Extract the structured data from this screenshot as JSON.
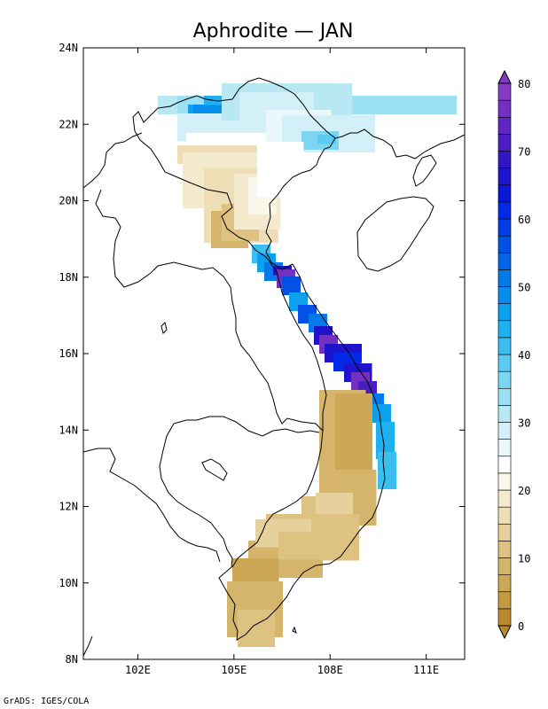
{
  "title": "Aphrodite  —  JAN",
  "credit": "GrADS: IGES/COLA",
  "map": {
    "lon_range": [
      100.3,
      112.2
    ],
    "lat_range": [
      8,
      24
    ],
    "lon_ticks": [
      {
        "value": 102,
        "label": "102E"
      },
      {
        "value": 105,
        "label": "105E"
      },
      {
        "value": 108,
        "label": "108E"
      },
      {
        "value": 111,
        "label": "111E"
      }
    ],
    "lat_ticks": [
      {
        "value": 8,
        "label": "8N"
      },
      {
        "value": 10,
        "label": "10N"
      },
      {
        "value": 12,
        "label": "12N"
      },
      {
        "value": 14,
        "label": "14N"
      },
      {
        "value": 16,
        "label": "16N"
      },
      {
        "value": 18,
        "label": "18N"
      },
      {
        "value": 20,
        "label": "20N"
      },
      {
        "value": 22,
        "label": "22N"
      },
      {
        "value": 24,
        "label": "24N"
      }
    ]
  },
  "colorbar": {
    "range": [
      0,
      80
    ],
    "labels": [
      "0",
      "10",
      "20",
      "30",
      "40",
      "50",
      "60",
      "70",
      "80"
    ],
    "colors": [
      "#b9892d",
      "#c49a42",
      "#cca756",
      "#d5b46b",
      "#ddc282",
      "#e6d09b",
      "#eddeb5",
      "#f4ebcf",
      "#faf6ea",
      "#ffffff",
      "#eaf7fb",
      "#d3f0f8",
      "#b9e8f5",
      "#9be0f3",
      "#7cd6f2",
      "#5ccbf1",
      "#3bbff0",
      "#1fb1ef",
      "#0da0ed",
      "#078deb",
      "#0479ea",
      "#0265e8",
      "#0151e7",
      "#003ee6",
      "#002ae5",
      "#0a18d8",
      "#1f14cc",
      "#3417c3",
      "#4a1ec0",
      "#5f27c0",
      "#7431c1",
      "#873cc4"
    ],
    "under_color": "#b9892d",
    "over_color": "#7f3ac4"
  }
}
